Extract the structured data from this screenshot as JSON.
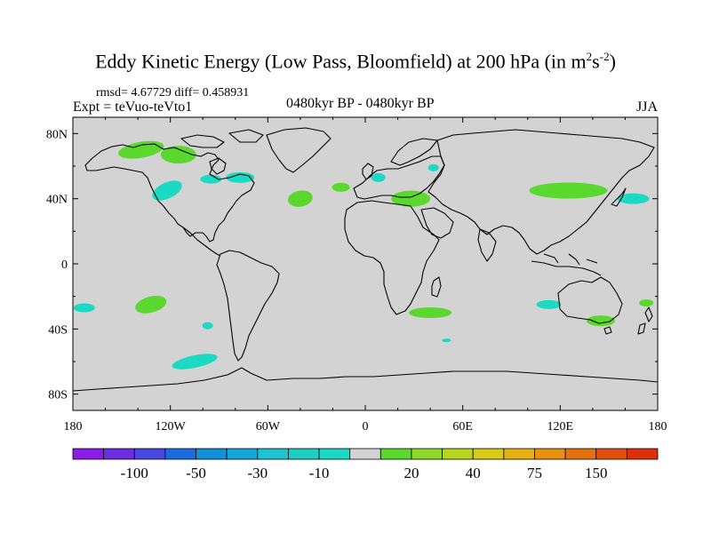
{
  "title": {
    "main": "Eddy Kinetic Energy (Low Pass, Bloomfield) at 200 hPa (in m",
    "sup1": "2",
    "mid": "s",
    "sup2": "-2",
    "close": ")"
  },
  "stats": "rmsd= 4.67729 diff= 0.458931",
  "experiment": "Expt = teVuo-teVto1",
  "period": "0480kyr BP - 0480kyr BP",
  "season": "JJA",
  "colors": {
    "land_ocean_background": "#d3d3d3",
    "positive_anomaly": "#5ad82e",
    "negative_anomaly": "#1cd9c4",
    "coastline": "#000000"
  },
  "chart_data": {
    "type": "heatmap",
    "projection": "cylindrical-equidistant",
    "x_range": [
      -180,
      180
    ],
    "y_range": [
      -90,
      90
    ],
    "x_ticks": [
      "180",
      "120W",
      "60W",
      "0",
      "60E",
      "120E",
      "180"
    ],
    "y_ticks": [
      "80N",
      "40N",
      "0",
      "40S",
      "80S"
    ],
    "colorbar": {
      "colors": [
        "#8a1ee8",
        "#6b2ee3",
        "#4848e0",
        "#1c6ae0",
        "#1290d8",
        "#14a6d6",
        "#1ec2d2",
        "#1ccfc0",
        "#1cd9c4",
        "#d3d3d3",
        "#5ad82e",
        "#8ed82a",
        "#b6d620",
        "#d8cc18",
        "#e6b012",
        "#e89010",
        "#e4700e",
        "#e0500c",
        "#dc300a"
      ],
      "labels": [
        "-100",
        "-50",
        "-30",
        "-10",
        "20",
        "40",
        "75",
        "150"
      ]
    },
    "regions": [
      {
        "sign": "positive",
        "lon": -138,
        "lat": 70,
        "desc": "Alaska / NW Canada"
      },
      {
        "sign": "positive",
        "lon": -115,
        "lat": 67,
        "desc": "Northern Canada"
      },
      {
        "sign": "negative",
        "lon": -122,
        "lat": 45,
        "desc": "US West Coast"
      },
      {
        "sign": "negative",
        "lon": -95,
        "lat": 52,
        "desc": "Central Canada"
      },
      {
        "sign": "negative",
        "lon": -77,
        "lat": 53,
        "desc": "Hudson Bay"
      },
      {
        "sign": "positive",
        "lon": -40,
        "lat": 40,
        "desc": "North Atlantic"
      },
      {
        "sign": "positive",
        "lon": -15,
        "lat": 47,
        "desc": "NE Atlantic"
      },
      {
        "sign": "negative",
        "lon": 8,
        "lat": 53,
        "desc": "North Sea"
      },
      {
        "sign": "negative",
        "lon": 42,
        "lat": 59,
        "desc": "Western Russia"
      },
      {
        "sign": "positive",
        "lon": 28,
        "lat": 40,
        "desc": "Mediterranean / Turkey"
      },
      {
        "sign": "positive",
        "lon": 125,
        "lat": 45,
        "desc": "NE Asia"
      },
      {
        "sign": "negative",
        "lon": 165,
        "lat": 40,
        "desc": "NW Pacific"
      },
      {
        "sign": "positive",
        "lon": -132,
        "lat": -25,
        "desc": "South Pacific"
      },
      {
        "sign": "negative",
        "lon": -173,
        "lat": -27,
        "desc": "Dateline South Pacific"
      },
      {
        "sign": "positive",
        "lon": 40,
        "lat": -30,
        "desc": "SW Indian Ocean"
      },
      {
        "sign": "negative",
        "lon": 113,
        "lat": -25,
        "desc": "Western Australia"
      },
      {
        "sign": "positive",
        "lon": 145,
        "lat": -35,
        "desc": "SE Australia"
      },
      {
        "sign": "positive",
        "lon": 173,
        "lat": -24,
        "desc": "Tasman / New Caledonia"
      },
      {
        "sign": "negative",
        "lon": -97,
        "lat": -38,
        "desc": "SE Pacific"
      },
      {
        "sign": "negative",
        "lon": -105,
        "lat": -60,
        "desc": "Southern Ocean (Pacific)"
      },
      {
        "sign": "negative",
        "lon": 50,
        "lat": -47,
        "desc": "Southern Ocean (Indian)"
      }
    ]
  }
}
